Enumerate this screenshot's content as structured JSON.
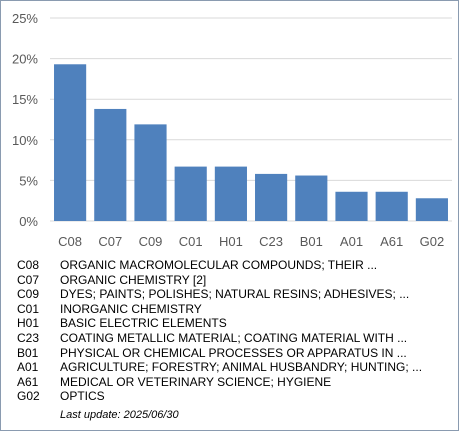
{
  "chart_data": {
    "type": "bar",
    "categories": [
      "C08",
      "C07",
      "C09",
      "C01",
      "H01",
      "C23",
      "B01",
      "A01",
      "A61",
      "G02"
    ],
    "values": [
      19.3,
      13.8,
      11.9,
      6.7,
      6.7,
      5.8,
      5.6,
      3.6,
      3.6,
      2.8
    ],
    "ylim": [
      0,
      25
    ],
    "yticks": [
      "0%",
      "5%",
      "10%",
      "15%",
      "20%",
      "25%"
    ],
    "grid": true,
    "bar_color": "#4f81bd",
    "grid_color": "#d9d9d9"
  },
  "legend": [
    {
      "code": "C08",
      "desc": "ORGANIC MACROMOLECULAR COMPOUNDS; THEIR ..."
    },
    {
      "code": "C07",
      "desc": "ORGANIC CHEMISTRY [2]"
    },
    {
      "code": "C09",
      "desc": "DYES; PAINTS; POLISHES; NATURAL RESINS; ADHESIVES; ..."
    },
    {
      "code": "C01",
      "desc": "INORGANIC CHEMISTRY"
    },
    {
      "code": "H01",
      "desc": "BASIC ELECTRIC ELEMENTS"
    },
    {
      "code": "C23",
      "desc": "COATING METALLIC MATERIAL; COATING MATERIAL WITH ..."
    },
    {
      "code": "B01",
      "desc": "PHYSICAL OR CHEMICAL PROCESSES OR APPARATUS IN ..."
    },
    {
      "code": "A01",
      "desc": "AGRICULTURE; FORESTRY; ANIMAL HUSBANDRY; HUNTING; ..."
    },
    {
      "code": "A61",
      "desc": "MEDICAL OR VETERINARY SCIENCE; HYGIENE"
    },
    {
      "code": "G02",
      "desc": "OPTICS"
    }
  ],
  "footer": {
    "last_update": "Last update:  2025/06/30"
  }
}
